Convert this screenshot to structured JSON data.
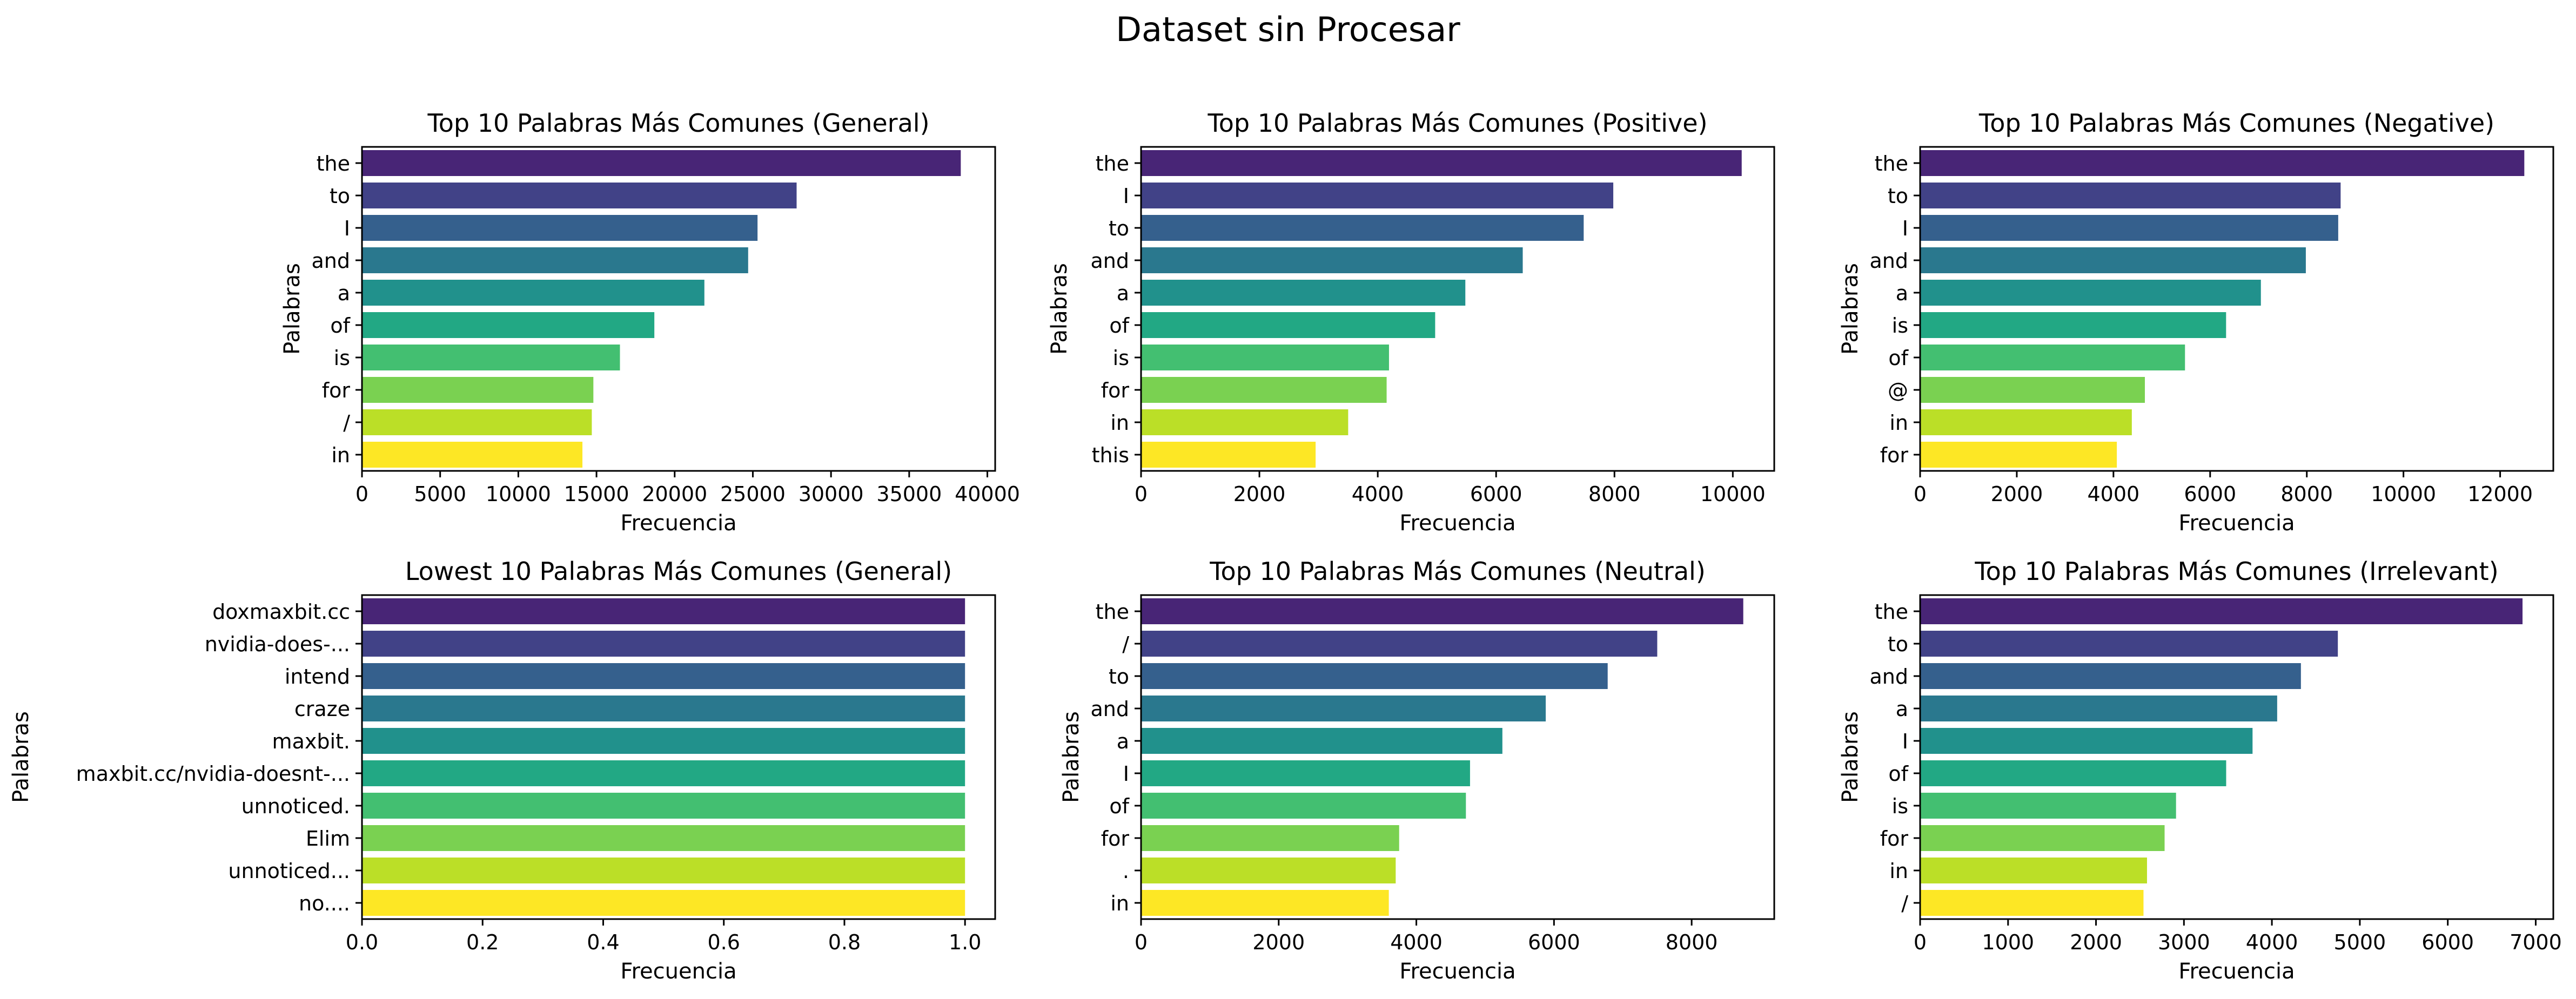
{
  "figure": {
    "title": "Dataset sin Procesar"
  },
  "palette": [
    "#482576",
    "#414287",
    "#35608d",
    "#2a788e",
    "#21918c",
    "#22a884",
    "#43bf71",
    "#7ad151",
    "#bbdf27",
    "#fde725"
  ],
  "chart_data": [
    {
      "type": "bar",
      "orientation": "horizontal",
      "title": "Top 10 Palabras Más Comunes (General)",
      "xlabel": "Frecuencia",
      "ylabel": "Palabras",
      "categories": [
        "the",
        "to",
        "I",
        "and",
        "a",
        "of",
        "is",
        "for",
        "/",
        "in"
      ],
      "values": [
        38300,
        27800,
        25300,
        24700,
        21900,
        18700,
        16500,
        14800,
        14700,
        14100
      ],
      "xlim": [
        0,
        40500
      ],
      "xticks": [
        0,
        5000,
        10000,
        15000,
        20000,
        25000,
        30000,
        35000,
        40000
      ],
      "xtick_labels": [
        "0",
        "5000",
        "10000",
        "15000",
        "20000",
        "25000",
        "30000",
        "35000",
        "40000"
      ]
    },
    {
      "type": "bar",
      "orientation": "horizontal",
      "title": "Top 10 Palabras Más Comunes (Positive)",
      "xlabel": "Frecuencia",
      "ylabel": "Palabras",
      "categories": [
        "the",
        "I",
        "to",
        "and",
        "a",
        "of",
        "is",
        "for",
        "in",
        "this"
      ],
      "values": [
        10150,
        7980,
        7480,
        6450,
        5480,
        4970,
        4190,
        4150,
        3500,
        2950
      ],
      "xlim": [
        0,
        10700
      ],
      "xticks": [
        0,
        2000,
        4000,
        6000,
        8000,
        10000
      ],
      "xtick_labels": [
        "0",
        "2000",
        "4000",
        "6000",
        "8000",
        "10000"
      ]
    },
    {
      "type": "bar",
      "orientation": "horizontal",
      "title": "Top 10 Palabras Más Comunes (Negative)",
      "xlabel": "Frecuencia",
      "ylabel": "Palabras",
      "categories": [
        "the",
        "to",
        "I",
        "and",
        "a",
        "is",
        "of",
        "@",
        "in",
        "for"
      ],
      "values": [
        12500,
        8700,
        8650,
        7980,
        7050,
        6330,
        5480,
        4650,
        4380,
        4070
      ],
      "xlim": [
        0,
        13100
      ],
      "xticks": [
        0,
        2000,
        4000,
        6000,
        8000,
        10000,
        12000
      ],
      "xtick_labels": [
        "0",
        "2000",
        "4000",
        "6000",
        "8000",
        "10000",
        "12000"
      ]
    },
    {
      "type": "bar",
      "orientation": "horizontal",
      "title": "Lowest 10 Palabras Más Comunes (General)",
      "xlabel": "Frecuencia",
      "ylabel": "Palabras",
      "categories": [
        "doxmaxbit.cc",
        "nvidia-does-...",
        "intend",
        "craze",
        "maxbit.",
        "maxbit.cc/nvidia-doesnt-...",
        "unnoticed.",
        "Elim",
        "unnoticed...",
        "no...."
      ],
      "values": [
        1,
        1,
        1,
        1,
        1,
        1,
        1,
        1,
        1,
        1
      ],
      "xlim": [
        0,
        1.05
      ],
      "xticks": [
        0,
        0.2,
        0.4,
        0.6,
        0.8,
        1.0
      ],
      "xtick_labels": [
        "0.0",
        "0.2",
        "0.4",
        "0.6",
        "0.8",
        "1.0"
      ]
    },
    {
      "type": "bar",
      "orientation": "horizontal",
      "title": "Top 10 Palabras Más Comunes (Neutral)",
      "xlabel": "Frecuencia",
      "ylabel": "Palabras",
      "categories": [
        "the",
        "/",
        "to",
        "and",
        "a",
        "I",
        "of",
        "for",
        ".",
        "in"
      ],
      "values": [
        8750,
        7500,
        6780,
        5880,
        5250,
        4780,
        4720,
        3750,
        3700,
        3600
      ],
      "xlim": [
        0,
        9200
      ],
      "xticks": [
        0,
        2000,
        4000,
        6000,
        8000
      ],
      "xtick_labels": [
        "0",
        "2000",
        "4000",
        "6000",
        "8000"
      ]
    },
    {
      "type": "bar",
      "orientation": "horizontal",
      "title": "Top 10 Palabras Más Comunes (Irrelevant)",
      "xlabel": "Frecuencia",
      "ylabel": "Palabras",
      "categories": [
        "the",
        "to",
        "and",
        "a",
        "I",
        "of",
        "is",
        "for",
        "in",
        "/"
      ],
      "values": [
        6850,
        4750,
        4330,
        4060,
        3780,
        3480,
        2910,
        2780,
        2580,
        2540
      ],
      "xlim": [
        0,
        7200
      ],
      "xticks": [
        0,
        1000,
        2000,
        3000,
        4000,
        5000,
        6000,
        7000
      ],
      "xtick_labels": [
        "0",
        "1000",
        "2000",
        "3000",
        "4000",
        "5000",
        "6000",
        "7000"
      ]
    }
  ]
}
